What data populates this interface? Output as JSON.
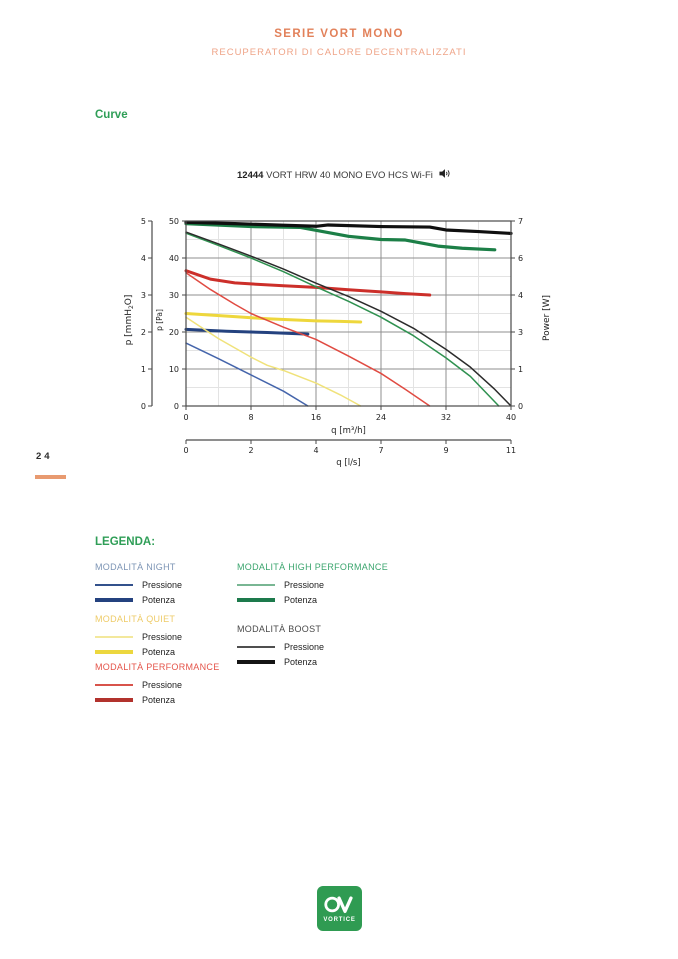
{
  "page": {
    "header_title": "SERIE VORT MONO",
    "header_subtitle": "RECUPERATORI DI CALORE DECENTRALIZZATI",
    "section_heading": "Curve",
    "page_number": "24",
    "logo_text": "VORTICE"
  },
  "colors": {
    "accent_orange": "#e2815a",
    "accent_orange_light": "#efa488",
    "heading_green": "#2f9e57",
    "page_bar_orange": "#e89a70",
    "logo_green": "#2f9b52"
  },
  "chart": {
    "title_code": "12444",
    "title_name": "VORT HRW 40 MONO EVO HCS Wi-Fi",
    "title_icon": "speaker-icon"
  },
  "chart_data": {
    "type": "line",
    "title": "12444 VORT HRW 40 MONO EVO HCS Wi-Fi",
    "grid": "major+minor",
    "axes": {
      "x_primary": {
        "label": "q [m³/h]",
        "range": [
          0,
          40
        ],
        "ticks": [
          0,
          8,
          16,
          24,
          32,
          40
        ],
        "minor_step": 4
      },
      "x_secondary": {
        "label": "q [l/s]",
        "tick_labels": [
          "0",
          "2",
          "4",
          "7",
          "9",
          "11"
        ]
      },
      "y_left_outer": {
        "label": "p [mmH2O]",
        "label_parts": [
          "p [mmH",
          "2",
          "O]"
        ],
        "range": [
          0,
          5
        ],
        "ticks": [
          0,
          1,
          2,
          3,
          4,
          5
        ]
      },
      "y_left_inner": {
        "label": "p [Pa]",
        "range": [
          0,
          50
        ],
        "ticks": [
          0,
          10,
          20,
          30,
          40,
          50
        ],
        "minor_step": 5
      },
      "y_right": {
        "label": "Power [W]",
        "range": [
          0,
          7
        ],
        "tick_labels": [
          "0",
          "1",
          "3",
          "4",
          "6",
          "7"
        ],
        "tick_positions_pa": [
          0,
          10,
          20,
          30,
          40,
          50
        ]
      }
    },
    "series": [
      {
        "id": "night-pressione",
        "name": "Night Pressione",
        "axis": "pa",
        "unit": "Pa",
        "color": "#4565ab",
        "width": 1.5,
        "points": [
          [
            0,
            17
          ],
          [
            4,
            12.8
          ],
          [
            8,
            8.4
          ],
          [
            12,
            4
          ],
          [
            15,
            0
          ]
        ]
      },
      {
        "id": "night-potenza",
        "name": "Night Potenza",
        "axis": "w",
        "unit": "W",
        "color": "#24427f",
        "width": 3,
        "points": [
          [
            0,
            2.9
          ],
          [
            5,
            2.83
          ],
          [
            10,
            2.78
          ],
          [
            15,
            2.72
          ]
        ]
      },
      {
        "id": "quiet-pressione",
        "name": "Quiet Pressione",
        "axis": "pa",
        "unit": "Pa",
        "color": "#f0e27a",
        "width": 1.5,
        "points": [
          [
            0,
            24
          ],
          [
            4,
            18.2
          ],
          [
            8,
            13.2
          ],
          [
            10,
            11
          ],
          [
            12,
            9.6
          ],
          [
            16,
            6.2
          ],
          [
            19,
            3
          ],
          [
            21.5,
            0
          ]
        ]
      },
      {
        "id": "quiet-potenza",
        "name": "Quiet Potenza",
        "axis": "w",
        "unit": "W",
        "color": "#eed73c",
        "width": 3,
        "points": [
          [
            0,
            3.5
          ],
          [
            6,
            3.38
          ],
          [
            10,
            3.3
          ],
          [
            16,
            3.22
          ],
          [
            19,
            3.2
          ],
          [
            21.5,
            3.18
          ]
        ]
      },
      {
        "id": "performance-pressione",
        "name": "Performance Pressione",
        "axis": "pa",
        "unit": "Pa",
        "color": "#e04b42",
        "width": 1.5,
        "points": [
          [
            0,
            36
          ],
          [
            3,
            31.5
          ],
          [
            6,
            27.5
          ],
          [
            8,
            25
          ],
          [
            12,
            21.3
          ],
          [
            16,
            18
          ],
          [
            20,
            13.5
          ],
          [
            24,
            8.8
          ],
          [
            27,
            4.5
          ],
          [
            30,
            0
          ]
        ]
      },
      {
        "id": "performance-potenza",
        "name": "Performance Potenza",
        "axis": "w",
        "unit": "W",
        "color": "#cc2f2a",
        "width": 3,
        "points": [
          [
            0,
            5.12
          ],
          [
            3,
            4.8
          ],
          [
            6,
            4.66
          ],
          [
            8,
            4.62
          ],
          [
            12,
            4.55
          ],
          [
            16,
            4.49
          ],
          [
            20,
            4.4
          ],
          [
            24,
            4.32
          ],
          [
            27,
            4.25
          ],
          [
            30,
            4.2
          ]
        ]
      },
      {
        "id": "high-performance-pressione",
        "name": "High Performance Pressione",
        "axis": "pa",
        "unit": "Pa",
        "color": "#2f9150",
        "width": 1.5,
        "points": [
          [
            0,
            46.7
          ],
          [
            4,
            43.4
          ],
          [
            8,
            40
          ],
          [
            12,
            36.3
          ],
          [
            16,
            32.2
          ],
          [
            20,
            28.3
          ],
          [
            24,
            24
          ],
          [
            28,
            19
          ],
          [
            32,
            13
          ],
          [
            35,
            8
          ],
          [
            38.5,
            0
          ]
        ]
      },
      {
        "id": "boost-pressione",
        "name": "Boost Pressione",
        "axis": "pa",
        "unit": "Pa",
        "color": "#2b2b2b",
        "width": 1.5,
        "points": [
          [
            0,
            47
          ],
          [
            4,
            43.8
          ],
          [
            8,
            40.5
          ],
          [
            12,
            37
          ],
          [
            16,
            33.2
          ],
          [
            20,
            29.6
          ],
          [
            24,
            25.6
          ],
          [
            28,
            21
          ],
          [
            32,
            15.3
          ],
          [
            35,
            10.5
          ],
          [
            38,
            4.5
          ],
          [
            40,
            0
          ]
        ]
      },
      {
        "id": "high-performance-potenza",
        "name": "High Performance Potenza",
        "axis": "w",
        "unit": "W",
        "color": "#1c7f47",
        "width": 3.2,
        "points": [
          [
            0,
            6.9
          ],
          [
            8,
            6.79
          ],
          [
            14,
            6.76
          ],
          [
            20,
            6.42
          ],
          [
            24,
            6.3
          ],
          [
            27,
            6.28
          ],
          [
            31,
            6.05
          ],
          [
            34,
            5.97
          ],
          [
            38,
            5.91
          ]
        ]
      },
      {
        "id": "boost-potenza",
        "name": "Boost Potenza",
        "axis": "w",
        "unit": "W",
        "color": "#0f0f0f",
        "width": 3.2,
        "points": [
          [
            0,
            6.95
          ],
          [
            6,
            6.9
          ],
          [
            12,
            6.84
          ],
          [
            16,
            6.8
          ],
          [
            17.5,
            6.85
          ],
          [
            24,
            6.79
          ],
          [
            30,
            6.77
          ],
          [
            32,
            6.66
          ],
          [
            36,
            6.6
          ],
          [
            40,
            6.53
          ]
        ]
      }
    ]
  },
  "legend": {
    "title": "LEGENDA:",
    "groups": [
      {
        "name": "MODALITÀ NIGHT",
        "title_color": "#7d95b5",
        "entries": [
          {
            "label": "Pressione",
            "color": "#33518c"
          },
          {
            "label": "Potenza",
            "color": "#24427f"
          }
        ]
      },
      {
        "name": "MODALITÀ QUIET",
        "title_color": "#eecb67",
        "entries": [
          {
            "label": "Pressione",
            "color": "#f3e89c"
          },
          {
            "label": "Potenza",
            "color": "#ecd73e"
          }
        ]
      },
      {
        "name": "MODALITÀ PERFORMANCE",
        "title_color": "#e4544a",
        "entries": [
          {
            "label": "Pressione",
            "color": "#d8534b"
          },
          {
            "label": "Potenza",
            "color": "#b2322d"
          }
        ]
      },
      {
        "name": "MODALITÀ HIGH PERFORMANCE",
        "title_color": "#3ba56e",
        "entries": [
          {
            "label": "Pressione",
            "color": "#79b693"
          },
          {
            "label": "Potenza",
            "color": "#1d7a4c"
          }
        ]
      },
      {
        "name": "MODALITÀ BOOST",
        "title_color": "#4a4a4a",
        "entries": [
          {
            "label": "Pressione",
            "color": "#4f4f4f"
          },
          {
            "label": "Potenza",
            "color": "#141414"
          }
        ]
      }
    ]
  }
}
